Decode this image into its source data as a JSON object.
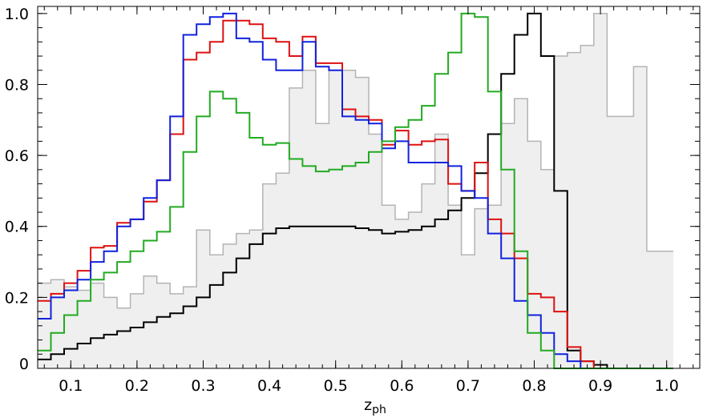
{
  "chart_data": {
    "type": "histogram",
    "title": "",
    "xlabel_main": "z",
    "xlabel_sub": "ph",
    "ylabel": "",
    "xlim": [
      0.05,
      1.05
    ],
    "ylim": [
      0,
      1.02
    ],
    "bin_width": 0.02,
    "x_start": 0.05,
    "grid": false,
    "legend": "none",
    "x_ticks": [
      "0.1",
      "0.2",
      "0.3",
      "0.4",
      "0.5",
      "0.6",
      "0.7",
      "0.8",
      "0.9",
      "1.0"
    ],
    "x_tick_values": [
      0.1,
      0.2,
      0.3,
      0.4,
      0.5,
      0.6,
      0.7,
      0.8,
      0.9,
      1.0
    ],
    "y_ticks": [
      "0",
      "0.2",
      "0.4",
      "0.6",
      "0.8",
      "1.0"
    ],
    "y_tick_values": [
      0,
      0.2,
      0.4,
      0.6,
      0.8,
      1.0
    ],
    "series": [
      {
        "color": "#b4b4b4",
        "fill": "#efefef",
        "style": "filled",
        "values": [
          0.24,
          0.25,
          0.23,
          0.22,
          0.24,
          0.2,
          0.17,
          0.21,
          0.26,
          0.24,
          0.21,
          0.23,
          0.39,
          0.32,
          0.35,
          0.38,
          0.39,
          0.52,
          0.55,
          0.79,
          0.84,
          0.69,
          0.84,
          0.84,
          0.82,
          0.66,
          0.46,
          0.42,
          0.44,
          0.52,
          0.66,
          0.46,
          0.32,
          0.45,
          0.46,
          0.69,
          0.76,
          0.64,
          0.56,
          0.88,
          0.89,
          0.91,
          1.0,
          0.71,
          0.71,
          0.85,
          0.33,
          0.33
        ]
      },
      {
        "color": "#000000",
        "style": "line",
        "values": [
          0.025,
          0.04,
          0.055,
          0.07,
          0.085,
          0.095,
          0.105,
          0.115,
          0.13,
          0.145,
          0.155,
          0.175,
          0.2,
          0.235,
          0.27,
          0.31,
          0.35,
          0.38,
          0.395,
          0.4,
          0.4,
          0.4,
          0.4,
          0.4,
          0.395,
          0.39,
          0.38,
          0.385,
          0.39,
          0.4,
          0.42,
          0.445,
          0.48,
          0.55,
          0.66,
          0.83,
          0.94,
          1.0,
          0.88,
          0.5,
          0.05,
          0.02,
          0.01,
          0.0,
          0.0,
          0.0,
          0.0,
          0.0
        ]
      },
      {
        "color": "#dd1111",
        "style": "line",
        "values": [
          0.19,
          0.21,
          0.24,
          0.275,
          0.34,
          0.345,
          0.41,
          0.42,
          0.47,
          0.53,
          0.66,
          0.87,
          0.89,
          0.92,
          0.98,
          0.98,
          0.97,
          0.93,
          0.92,
          0.88,
          0.935,
          0.86,
          0.86,
          0.73,
          0.71,
          0.7,
          0.63,
          0.67,
          0.63,
          0.64,
          0.645,
          0.52,
          0.5,
          0.58,
          0.42,
          0.38,
          0.31,
          0.21,
          0.2,
          0.16,
          0.06,
          0.02,
          0.0,
          0.0,
          0.0,
          0.0,
          0.0,
          0.0
        ]
      },
      {
        "color": "#1122dd",
        "style": "line",
        "values": [
          0.14,
          0.2,
          0.22,
          0.25,
          0.3,
          0.33,
          0.4,
          0.42,
          0.48,
          0.53,
          0.71,
          0.94,
          0.97,
          0.99,
          1.0,
          0.93,
          0.92,
          0.87,
          0.84,
          0.84,
          0.92,
          0.85,
          0.84,
          0.71,
          0.7,
          0.69,
          0.62,
          0.64,
          0.58,
          0.58,
          0.58,
          0.57,
          0.5,
          0.48,
          0.38,
          0.31,
          0.19,
          0.15,
          0.1,
          0.04,
          0.02,
          0.0,
          0.0,
          0.0,
          0.0,
          0.0,
          0.0,
          0.0
        ]
      },
      {
        "color": "#22aa22",
        "style": "line",
        "values": [
          0.05,
          0.1,
          0.15,
          0.19,
          0.25,
          0.27,
          0.3,
          0.33,
          0.36,
          0.385,
          0.455,
          0.61,
          0.71,
          0.78,
          0.76,
          0.72,
          0.65,
          0.63,
          0.635,
          0.59,
          0.57,
          0.555,
          0.56,
          0.57,
          0.58,
          0.61,
          0.64,
          0.68,
          0.7,
          0.74,
          0.83,
          0.89,
          1.0,
          0.99,
          0.78,
          0.56,
          0.33,
          0.1,
          0.05,
          0.0,
          0.0,
          0.0,
          0.0,
          0.0,
          0.0,
          0.0,
          0.0,
          0.0
        ]
      }
    ]
  }
}
